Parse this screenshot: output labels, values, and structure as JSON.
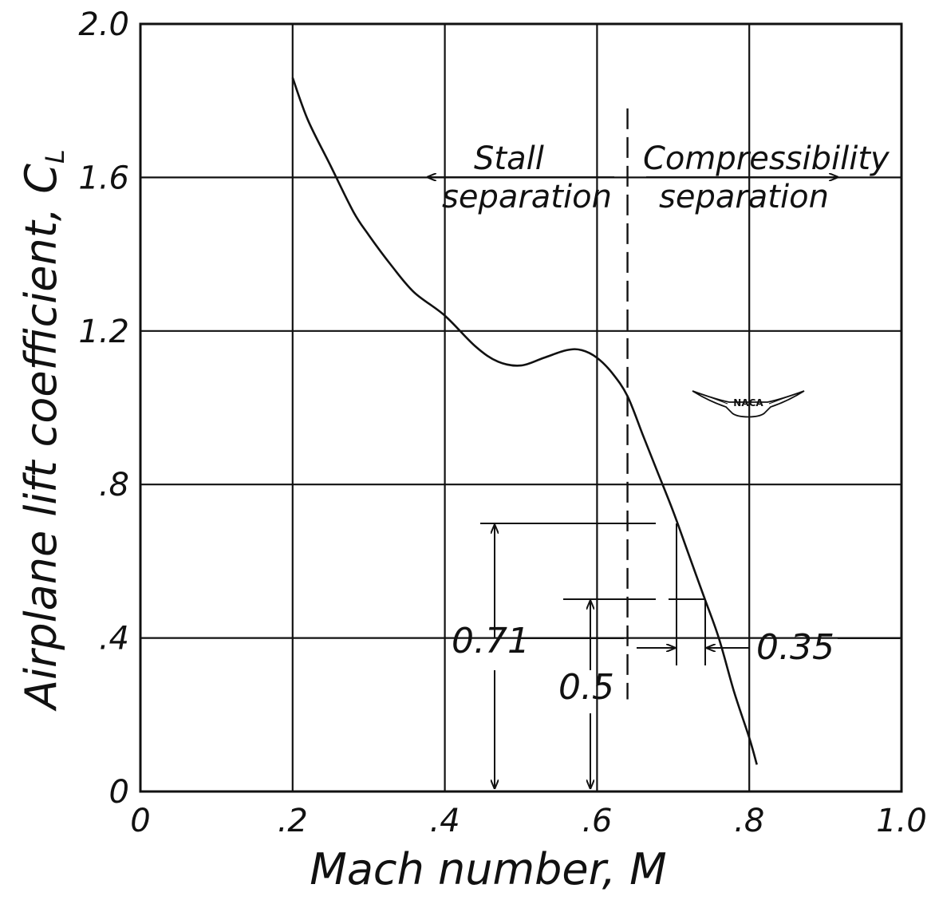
{
  "chart_data": {
    "type": "line",
    "title": "",
    "xlabel": "Mach number, M",
    "ylabel": "Airplane lift coefficient, C",
    "ylabel_subscript": "L",
    "xlim": [
      0,
      1.0
    ],
    "ylim": [
      0,
      2.0
    ],
    "grid": true,
    "x_tick_labels": [
      "0",
      ".2",
      ".4",
      ".6",
      ".8",
      "1.0"
    ],
    "y_tick_labels": [
      "0",
      ".4",
      ".8",
      "1.2",
      "1.6",
      "2.0"
    ],
    "series": [
      {
        "x": [
          0.2,
          0.22,
          0.25,
          0.28,
          0.3,
          0.33,
          0.36,
          0.4,
          0.44,
          0.47,
          0.5,
          0.53,
          0.56,
          0.58,
          0.6,
          0.62,
          0.64,
          0.66,
          0.68,
          0.7,
          0.72,
          0.74,
          0.76,
          0.78,
          0.8,
          0.81
        ],
        "y": [
          1.86,
          1.75,
          1.63,
          1.51,
          1.45,
          1.37,
          1.3,
          1.24,
          1.16,
          1.12,
          1.11,
          1.13,
          1.15,
          1.15,
          1.13,
          1.09,
          1.03,
          0.93,
          0.83,
          0.73,
          0.62,
          0.51,
          0.4,
          0.26,
          0.14,
          0.07
        ]
      }
    ],
    "dividing_line_x": 0.64,
    "region_labels": {
      "stall": [
        "Stall",
        "separation"
      ],
      "compressibility": [
        "Compressibility",
        "separation"
      ]
    },
    "dimension_labels": {
      "upper": "0.71",
      "lower": "0.5",
      "width": "0.35"
    },
    "dimension_values": {
      "upper_height": 0.71,
      "lower_height": 0.5
    },
    "logo_text": "NACA"
  }
}
